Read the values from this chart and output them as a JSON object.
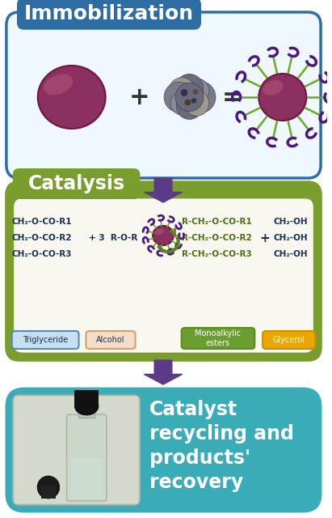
{
  "title": "Immobilization",
  "catalysis_title": "Catalysis",
  "recovery_title": "Catalyst\nrecycling and\nproducts'\nrecovery",
  "box1_bg": "#f0f8ff",
  "box1_border": "#2e6da4",
  "box1_title_bg": "#2e6da4",
  "box2_bg": "#7a9e2e",
  "box2_inner_bg": "#f8f8f0",
  "box3_bg": "#3aacb8",
  "arrow_color": "#5b3a8a",
  "bead_color": "#8b3060",
  "bead_highlight": "#c06080",
  "spike_color": "#6aaa20",
  "enzyme_tip_color": "#4a1880",
  "triglyceride_lines": [
    "CH₂-O-CO-R1",
    "CH₂-O-CO-R2",
    "CH₂-O-CO-R3"
  ],
  "product_lines": [
    "R-CH₂-O-CO-R1",
    "R-CH₂-O-CO-R2",
    "R-CH₂-O-CO-R3"
  ],
  "glycerol_lines": [
    "CH₂-OH",
    "CH₂-OH",
    "CH₂-OH"
  ],
  "label_triglyceride": "Triglyceride",
  "label_alcohol": "Alcohol",
  "label_monoalkylic": "Monoalkylic\nesters",
  "label_glycerol": "Glycerol",
  "tag_trig_color": "#c8dff0",
  "tag_trig_border": "#5a8ab0",
  "tag_alc_color": "#f5ddc8",
  "tag_alc_border": "#d0a070",
  "tag_mono_color": "#6a9e2e",
  "tag_mono_border": "#5a8e1e",
  "tag_glyc_color": "#e8a800",
  "tag_glyc_border": "#c89000",
  "text_dark": "#1a3050",
  "text_green": "#4a7010",
  "text_white": "#ffffff",
  "background_color": "#ffffff"
}
